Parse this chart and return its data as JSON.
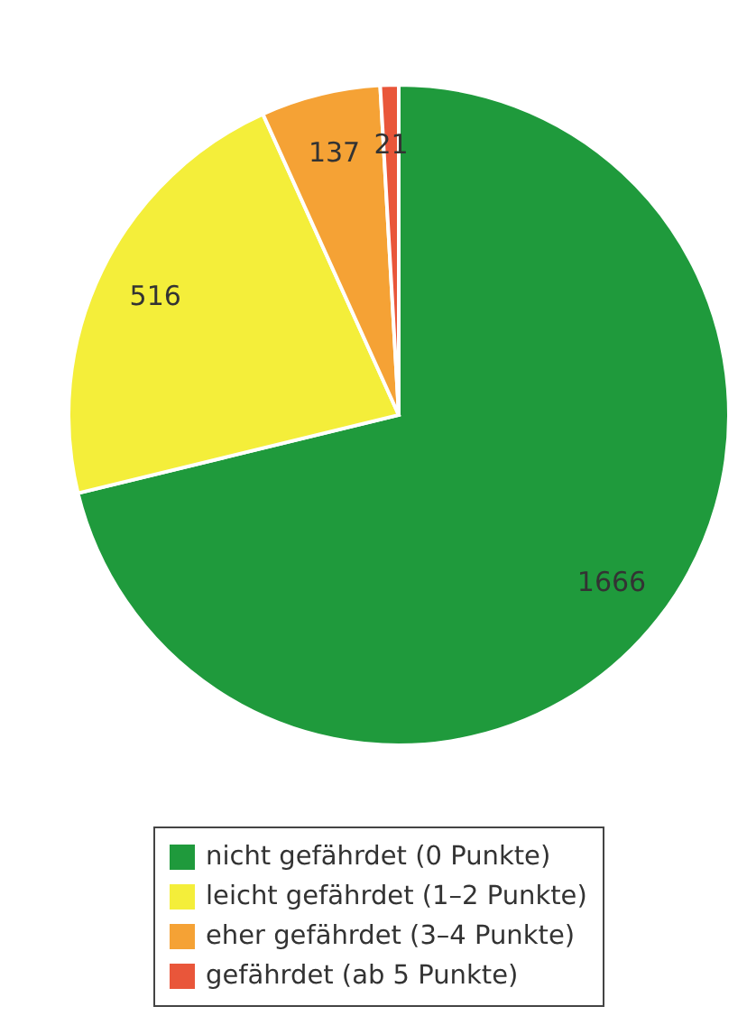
{
  "chart_data": {
    "type": "pie",
    "categories": [
      "nicht gefährdet (0 Punkte)",
      "leicht gefährdet (1–2 Punkte)",
      "eher gefährdet (3–4 Punkte)",
      "gefährdet (ab 5 Punkte)"
    ],
    "values": [
      1666,
      516,
      137,
      21
    ],
    "colors": [
      "#1f9a3c",
      "#f4ee3a",
      "#f5a235",
      "#e9563a"
    ],
    "data_labels": true,
    "legend": "bottom"
  }
}
